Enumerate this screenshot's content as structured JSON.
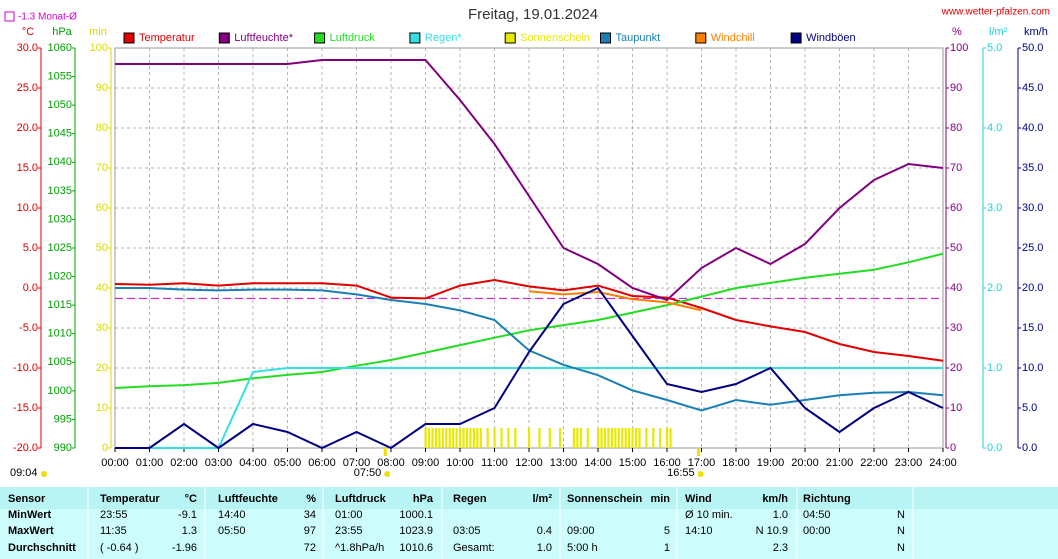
{
  "chart_data": {
    "type": "line",
    "title": "Freitag, 19.01.2024",
    "source": "www.wetter-pfalzen.com",
    "reference": {
      "label": "-1.3 Monat-Ø",
      "value": -1.3,
      "axis": "temp",
      "color": "#d000d0"
    },
    "axes": {
      "temp": {
        "label": "°C",
        "lim": [
          -20,
          30
        ],
        "color": "#e00000",
        "side": "left",
        "pos": 0,
        "ticks": [
          {
            "value": -20,
            "label": "-20.0"
          },
          {
            "value": -15,
            "label": "-15.0"
          },
          {
            "value": -10,
            "label": "-10.0"
          },
          {
            "value": -5,
            "label": "-5.0"
          },
          {
            "value": 0,
            "label": "0.0"
          },
          {
            "value": 5,
            "label": "5.0"
          },
          {
            "value": 10,
            "label": "10.0"
          },
          {
            "value": 15,
            "label": "15.0"
          },
          {
            "value": 20,
            "label": "20.0"
          },
          {
            "value": 25,
            "label": "25.0"
          },
          {
            "value": 30,
            "label": "30.0"
          }
        ]
      },
      "press": {
        "label": "hPa",
        "lim": [
          990,
          1060
        ],
        "color": "#00a000",
        "side": "left",
        "pos": 1,
        "ticks": [
          990,
          995,
          1000,
          1005,
          1010,
          1015,
          1020,
          1025,
          1030,
          1035,
          1040,
          1045,
          1050,
          1055,
          1060
        ]
      },
      "min": {
        "label": "min",
        "lim": [
          0,
          100
        ],
        "color": "#d8d800",
        "side": "left",
        "pos": 2,
        "ticks": [
          0,
          10,
          20,
          30,
          40,
          50,
          60,
          70,
          80,
          90,
          100
        ]
      },
      "hum": {
        "label": "%",
        "lim": [
          0,
          100
        ],
        "color": "#800080",
        "side": "right",
        "pos": 0,
        "ticks": [
          0,
          10,
          20,
          30,
          40,
          50,
          60,
          70,
          80,
          90,
          100
        ]
      },
      "rain": {
        "label": "l/m²",
        "lim": [
          0,
          5
        ],
        "color": "#20d0d0",
        "side": "right",
        "pos": 1,
        "ticks": [
          {
            "value": 0,
            "label": "0.0"
          },
          {
            "value": 1,
            "label": "1.0"
          },
          {
            "value": 2,
            "label": "2.0"
          },
          {
            "value": 3,
            "label": "3.0"
          },
          {
            "value": 4,
            "label": "4.0"
          },
          {
            "value": 5,
            "label": "5.0"
          }
        ]
      },
      "wind": {
        "label": "km/h",
        "lim": [
          0,
          50
        ],
        "color": "#000080",
        "side": "right",
        "pos": 2,
        "ticks": [
          {
            "value": 0,
            "label": "0.0"
          },
          {
            "value": 5,
            "label": "5.0"
          },
          {
            "value": 10,
            "label": "10.0"
          },
          {
            "value": 15,
            "label": "15.0"
          },
          {
            "value": 20,
            "label": "20.0"
          },
          {
            "value": 25,
            "label": "25.0"
          },
          {
            "value": 30,
            "label": "30.0"
          },
          {
            "value": 35,
            "label": "35.0"
          },
          {
            "value": 40,
            "label": "40.0"
          },
          {
            "value": 45,
            "label": "45.0"
          },
          {
            "value": 50,
            "label": "50.0"
          }
        ]
      }
    },
    "grid_axis": "temp",
    "grid": true,
    "xlim": [
      0,
      24
    ],
    "xticks": [
      {
        "value": 0,
        "label": "00:00"
      },
      {
        "value": 1,
        "label": "01:00"
      },
      {
        "value": 2,
        "label": "02:00"
      },
      {
        "value": 3,
        "label": "03:00"
      },
      {
        "value": 4,
        "label": "04:00"
      },
      {
        "value": 5,
        "label": "05:00"
      },
      {
        "value": 6,
        "label": "06:00"
      },
      {
        "value": 7,
        "label": "07:00"
      },
      {
        "value": 8,
        "label": "08:00"
      },
      {
        "value": 9,
        "label": "09:00"
      },
      {
        "value": 10,
        "label": "10:00"
      },
      {
        "value": 11,
        "label": "11:00"
      },
      {
        "value": 12,
        "label": "12:00"
      },
      {
        "value": 13,
        "label": "13:00"
      },
      {
        "value": 14,
        "label": "14:00"
      },
      {
        "value": 15,
        "label": "15:00"
      },
      {
        "value": 16,
        "label": "16:00"
      },
      {
        "value": 17,
        "label": "17:00"
      },
      {
        "value": 18,
        "label": "18:00"
      },
      {
        "value": 19,
        "label": "19:00"
      },
      {
        "value": 20,
        "label": "20:00"
      },
      {
        "value": 21,
        "label": "21:00"
      },
      {
        "value": 22,
        "label": "22:00"
      },
      {
        "value": 23,
        "label": "23:00"
      },
      {
        "value": 24,
        "label": "24:00"
      }
    ],
    "x": [
      0,
      1,
      2,
      3,
      4,
      5,
      6,
      7,
      8,
      9,
      10,
      11,
      12,
      13,
      14,
      15,
      16,
      17,
      18,
      19,
      20,
      21,
      22,
      23,
      24
    ],
    "series": [
      {
        "name": "Temperatur",
        "color": "#e00000",
        "axis": "temp",
        "values": [
          0.5,
          0.4,
          0.6,
          0.3,
          0.6,
          0.6,
          0.6,
          0.3,
          -1.2,
          -1.3,
          0.3,
          1.0,
          0.2,
          -0.3,
          0.3,
          -1.0,
          -1.2,
          -2.5,
          -4.0,
          -4.8,
          -5.5,
          -7.0,
          -8.0,
          -8.5,
          -9.1
        ]
      },
      {
        "name": "Luftfeuchte*",
        "color": "#800080",
        "axis": "hum",
        "values": [
          96,
          96,
          96,
          96,
          96,
          96,
          97,
          97,
          97,
          97,
          87,
          76,
          63,
          50,
          46,
          40,
          37,
          45,
          50,
          46,
          51,
          60,
          67,
          71,
          70
        ]
      },
      {
        "name": "Luftdruck",
        "color": "#22dd22",
        "axis": "press",
        "values": [
          1000.5,
          1000.8,
          1001.0,
          1001.4,
          1002.2,
          1002.8,
          1003.3,
          1004.4,
          1005.4,
          1006.7,
          1008,
          1009.3,
          1010.6,
          1011.5,
          1012.4,
          1013.7,
          1015,
          1016.5,
          1018,
          1018.9,
          1019.8,
          1020.5,
          1021.2,
          1022.5,
          1024
        ]
      },
      {
        "name": "Regen*",
        "color": "#33e0e0",
        "axis": "rain",
        "values": [
          0,
          0,
          0,
          0,
          0.95,
          1.0,
          1.0,
          1.0,
          1.0,
          1.0,
          1.0,
          1.0,
          1.0,
          1.0,
          1.0,
          1.0,
          1.0,
          1.0,
          1.0,
          1.0,
          1.0,
          1.0,
          1.0,
          1.0,
          1.0
        ]
      },
      {
        "name": "Sonnenschein",
        "color": "#e8e800",
        "axis": "min",
        "kind": "bar",
        "x": [
          9.0,
          9.1,
          9.2,
          9.3,
          9.4,
          9.5,
          9.6,
          9.7,
          9.8,
          9.9,
          10.0,
          10.1,
          10.2,
          10.3,
          10.4,
          10.5,
          10.6,
          10.8,
          11.0,
          11.2,
          11.4,
          11.6,
          12.0,
          12.3,
          12.6,
          12.9,
          13.3,
          13.4,
          13.5,
          13.7,
          14.0,
          14.1,
          14.2,
          14.3,
          14.4,
          14.5,
          14.6,
          14.7,
          14.8,
          14.9,
          15.0,
          15.1,
          15.2,
          15.4,
          15.6,
          15.8,
          16.0,
          16.1
        ],
        "values": [
          5,
          5,
          5,
          5,
          5,
          5,
          5,
          5,
          5,
          5,
          5,
          5,
          5,
          5,
          5,
          5,
          5,
          5,
          5,
          5,
          5,
          5,
          5,
          5,
          5,
          5,
          5,
          5,
          5,
          5,
          5,
          5,
          5,
          5,
          5,
          5,
          5,
          5,
          5,
          5,
          5,
          5,
          5,
          5,
          5,
          5,
          5,
          5
        ]
      },
      {
        "name": "Taupunkt",
        "color": "#1a7fb5",
        "axis": "temp",
        "values": [
          0,
          0,
          -0.2,
          -0.3,
          -0.2,
          -0.2,
          -0.3,
          -0.8,
          -1.5,
          -2.0,
          -2.8,
          -4.0,
          -7.8,
          -9.6,
          -10.9,
          -12.8,
          -14.0,
          -15.3,
          -14.0,
          -14.6,
          -14.0,
          -13.4,
          -13.1,
          -13.0,
          -13.4
        ]
      },
      {
        "name": "Windchill",
        "color": "#ff8000",
        "axis": "temp",
        "values": [
          null,
          null,
          null,
          null,
          null,
          null,
          null,
          null,
          null,
          null,
          null,
          null,
          -0.4,
          -0.8,
          -0.5,
          -1.4,
          -1.8,
          -2.8,
          null,
          null,
          null,
          null,
          null,
          null,
          null
        ]
      },
      {
        "name": "Windböen",
        "color": "#000080",
        "axis": "wind",
        "values": [
          0,
          0,
          3,
          0,
          3,
          2,
          0,
          2,
          0,
          3,
          3,
          5,
          12,
          18,
          20,
          14,
          8,
          7,
          8,
          10,
          5,
          2,
          5,
          7,
          5
        ]
      }
    ],
    "daylength": "09:04",
    "sunrise": {
      "label": "07:50",
      "x": 7.833
    },
    "sunset": {
      "label": "16:55",
      "x": 16.917
    },
    "table": {
      "header": [
        "Sensor",
        "Temperatur",
        "°C",
        "Luftfeuchte",
        "%",
        "Luftdruck",
        "hPa",
        "Regen",
        "l/m²",
        "Sonnenschein",
        "min",
        "Wind",
        "km/h",
        "Richtung",
        null
      ],
      "rows": [
        [
          "MinWert",
          "23:55",
          "-9.1",
          "14:40",
          "34",
          "01:00",
          "1000.1",
          null,
          null,
          null,
          null,
          "Ø 10 min.",
          "1.0",
          "04:50",
          "N"
        ],
        [
          "MaxWert",
          "11:35",
          "1.3",
          "05:50",
          "97",
          "23:55",
          "1023.9",
          "03:05",
          "0.4",
          "09:00",
          "5",
          "14:10",
          "N 10.9",
          "00:00",
          "N"
        ],
        [
          "Durchschnitt",
          "( -0.64 )",
          "-1.96",
          null,
          "72",
          "^1.8hPa/h",
          "1010.6",
          "Gesamt:",
          "1.0",
          "5:00 h",
          "1",
          null,
          "2.3",
          null,
          "N"
        ]
      ]
    }
  }
}
